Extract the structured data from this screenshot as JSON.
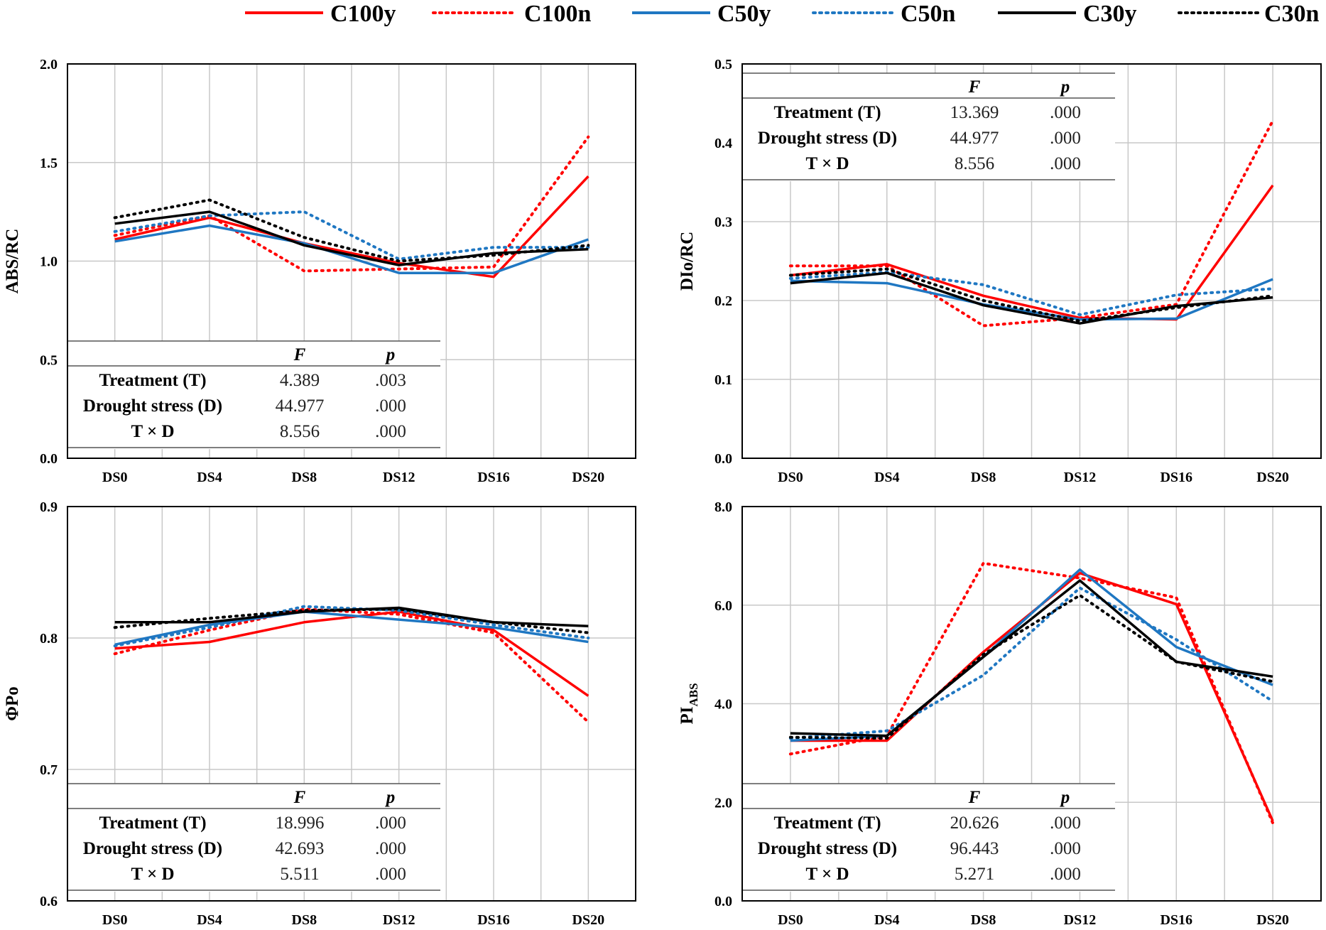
{
  "colors": {
    "red": "#ff0000",
    "blue": "#1f77c2",
    "black": "#000000",
    "grid": "#c8c8c8"
  },
  "legend": [
    {
      "label": "C100y",
      "color": "#ff0000",
      "dash": "solid"
    },
    {
      "label": "C100n",
      "color": "#ff0000",
      "dash": "dotted"
    },
    {
      "label": "C50y",
      "color": "#1f77c2",
      "dash": "solid"
    },
    {
      "label": "C50n",
      "color": "#1f77c2",
      "dash": "dotted"
    },
    {
      "label": "C30y",
      "color": "#000000",
      "dash": "solid"
    },
    {
      "label": "C30n",
      "color": "#000000",
      "dash": "dotted"
    }
  ],
  "stats_labels": {
    "f_header": "F",
    "p_header": "p"
  },
  "chart_data": [
    {
      "type": "line",
      "ylabel": "ABS/RC",
      "ylim": [
        0.0,
        2.0
      ],
      "yticks": [
        "0.0",
        "0.5",
        "1.0",
        "1.5",
        "2.0"
      ],
      "categories": [
        "DS0",
        "DS4",
        "DS8",
        "DS12",
        "DS16",
        "DS20"
      ],
      "series": [
        {
          "name": "C100y",
          "values": [
            1.11,
            1.22,
            1.09,
            0.99,
            0.92,
            1.43
          ]
        },
        {
          "name": "C100n",
          "values": [
            1.13,
            1.23,
            0.95,
            0.96,
            0.97,
            1.63
          ]
        },
        {
          "name": "C50y",
          "values": [
            1.1,
            1.18,
            1.09,
            0.94,
            0.94,
            1.11
          ]
        },
        {
          "name": "C50n",
          "values": [
            1.15,
            1.23,
            1.25,
            1.01,
            1.07,
            1.07
          ]
        },
        {
          "name": "C30y",
          "values": [
            1.19,
            1.25,
            1.08,
            0.98,
            1.04,
            1.06
          ]
        },
        {
          "name": "C30n",
          "values": [
            1.22,
            1.31,
            1.12,
            1.0,
            1.03,
            1.08
          ]
        }
      ],
      "stats": [
        {
          "label": "Treatment (T)",
          "F": "4.389",
          "p": ".003"
        },
        {
          "label": "Drought stress (D)",
          "F": "44.977",
          "p": ".000"
        },
        {
          "label": "T × D",
          "F": "8.556",
          "p": ".000"
        }
      ]
    },
    {
      "type": "line",
      "ylabel": "DIo/RC",
      "ylim": [
        0.0,
        0.5
      ],
      "yticks": [
        "0.0",
        "0.1",
        "0.2",
        "0.3",
        "0.4",
        "0.5"
      ],
      "categories": [
        "DS0",
        "DS4",
        "DS8",
        "DS12",
        "DS16",
        "DS20"
      ],
      "series": [
        {
          "name": "C100y",
          "values": [
            0.232,
            0.246,
            0.206,
            0.178,
            0.176,
            0.346
          ]
        },
        {
          "name": "C100n",
          "values": [
            0.244,
            0.244,
            0.168,
            0.178,
            0.195,
            0.428
          ]
        },
        {
          "name": "C50y",
          "values": [
            0.225,
            0.222,
            0.195,
            0.176,
            0.177,
            0.227
          ]
        },
        {
          "name": "C50n",
          "values": [
            0.228,
            0.236,
            0.22,
            0.182,
            0.207,
            0.215
          ]
        },
        {
          "name": "C30y",
          "values": [
            0.222,
            0.235,
            0.194,
            0.171,
            0.193,
            0.204
          ]
        },
        {
          "name": "C30n",
          "values": [
            0.232,
            0.24,
            0.2,
            0.174,
            0.191,
            0.206
          ]
        }
      ],
      "stats": [
        {
          "label": "Treatment (T)",
          "F": "13.369",
          "p": ".000"
        },
        {
          "label": "Drought stress (D)",
          "F": "44.977",
          "p": ".000"
        },
        {
          "label": "T × D",
          "F": "8.556",
          "p": ".000"
        }
      ]
    },
    {
      "type": "line",
      "ylabel": "ΦPo",
      "ylim": [
        0.6,
        0.9
      ],
      "yticks": [
        "0.6",
        "0.7",
        "0.8",
        "0.9"
      ],
      "categories": [
        "DS0",
        "DS4",
        "DS8",
        "DS12",
        "DS16",
        "DS20"
      ],
      "series": [
        {
          "name": "C100y",
          "values": [
            0.792,
            0.797,
            0.812,
            0.82,
            0.806,
            0.756
          ]
        },
        {
          "name": "C100n",
          "values": [
            0.788,
            0.806,
            0.822,
            0.818,
            0.804,
            0.736
          ]
        },
        {
          "name": "C50y",
          "values": [
            0.795,
            0.81,
            0.82,
            0.814,
            0.808,
            0.797
          ]
        },
        {
          "name": "C50n",
          "values": [
            0.794,
            0.808,
            0.824,
            0.821,
            0.81,
            0.8
          ]
        },
        {
          "name": "C30y",
          "values": [
            0.812,
            0.812,
            0.82,
            0.823,
            0.812,
            0.809
          ]
        },
        {
          "name": "C30n",
          "values": [
            0.808,
            0.815,
            0.821,
            0.822,
            0.812,
            0.804
          ]
        }
      ],
      "stats": [
        {
          "label": "Treatment (T)",
          "F": "18.996",
          "p": ".000"
        },
        {
          "label": "Drought stress (D)",
          "F": "42.693",
          "p": ".000"
        },
        {
          "label": "T × D",
          "F": "5.511",
          "p": ".000"
        }
      ]
    },
    {
      "type": "line",
      "ylabel": "PI",
      "ylabel_sub": "ABS",
      "ylim": [
        0.0,
        8.0
      ],
      "yticks": [
        "0.0",
        "2.0",
        "4.0",
        "6.0",
        "8.0"
      ],
      "categories": [
        "DS0",
        "DS4",
        "DS8",
        "DS12",
        "DS16",
        "DS20"
      ],
      "series": [
        {
          "name": "C100y",
          "values": [
            3.25,
            3.25,
            5.05,
            6.65,
            6.02,
            1.62
          ]
        },
        {
          "name": "C100n",
          "values": [
            2.98,
            3.35,
            6.85,
            6.55,
            6.15,
            1.58
          ]
        },
        {
          "name": "C50y",
          "values": [
            3.25,
            3.35,
            4.95,
            6.72,
            5.15,
            4.38
          ]
        },
        {
          "name": "C50n",
          "values": [
            3.3,
            3.45,
            4.58,
            6.35,
            5.3,
            4.05
          ]
        },
        {
          "name": "C30y",
          "values": [
            3.4,
            3.35,
            4.95,
            6.5,
            4.85,
            4.55
          ]
        },
        {
          "name": "C30n",
          "values": [
            3.32,
            3.3,
            5.0,
            6.2,
            4.85,
            4.45
          ]
        }
      ],
      "stats": [
        {
          "label": "Treatment (T)",
          "F": "20.626",
          "p": ".000"
        },
        {
          "label": "Drought stress (D)",
          "F": "96.443",
          "p": ".000"
        },
        {
          "label": "T × D",
          "F": "5.271",
          "p": ".000"
        }
      ]
    }
  ]
}
